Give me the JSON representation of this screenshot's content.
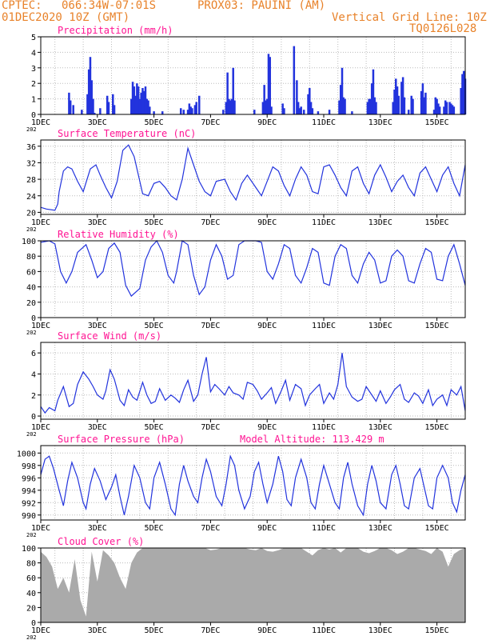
{
  "header": {
    "center": "CPTEC:",
    "location": "066:34W-07:01S",
    "station": "PROX03: PAUINI (AM)",
    "run": "01DEC2020 10Z (GMT)",
    "grid_note": "Vertical Grid Line: 10Z",
    "product": "TQ0126L028"
  },
  "colors": {
    "header": "#e8822a",
    "title": "#ff1493",
    "series": "#2233dd",
    "grid": "#bbbbbb",
    "cloud": "#aaaaaa",
    "frame": "#000000"
  },
  "x_labels": [
    "1DEC",
    "3DEC",
    "5DEC",
    "7DEC",
    "9DEC",
    "11DEC",
    "13DEC",
    "15DEC"
  ],
  "year_fragment": "202",
  "chart_data": [
    {
      "type": "bar",
      "title": "Precipitation (mm/h)",
      "yticks": [
        "0",
        "1",
        "2",
        "3",
        "4",
        "5"
      ],
      "ylim": [
        0,
        5
      ],
      "x_range_days": [
        1.0,
        16.0
      ],
      "bars": [
        [
          2.9,
          0.1
        ],
        [
          2.0,
          1.4
        ],
        [
          2.05,
          0.9
        ],
        [
          2.15,
          0.6
        ],
        [
          2.45,
          0.3
        ],
        [
          2.65,
          1.3
        ],
        [
          2.7,
          2.9
        ],
        [
          2.75,
          3.7
        ],
        [
          2.8,
          2.2
        ],
        [
          2.85,
          1.0
        ],
        [
          3.1,
          0.4
        ],
        [
          3.35,
          1.2
        ],
        [
          3.4,
          0.8
        ],
        [
          3.55,
          1.3
        ],
        [
          3.6,
          0.6
        ],
        [
          4.2,
          1.0
        ],
        [
          4.25,
          2.1
        ],
        [
          4.3,
          1.8
        ],
        [
          4.35,
          1.2
        ],
        [
          4.4,
          2.0
        ],
        [
          4.45,
          1.8
        ],
        [
          4.5,
          1.0
        ],
        [
          4.55,
          1.4
        ],
        [
          4.6,
          1.7
        ],
        [
          4.65,
          1.5
        ],
        [
          4.7,
          1.8
        ],
        [
          4.75,
          1.0
        ],
        [
          4.8,
          0.9
        ],
        [
          4.85,
          0.5
        ],
        [
          5.0,
          0.2
        ],
        [
          5.3,
          0.2
        ],
        [
          5.95,
          0.4
        ],
        [
          6.05,
          0.3
        ],
        [
          6.2,
          0.3
        ],
        [
          6.25,
          0.7
        ],
        [
          6.3,
          0.5
        ],
        [
          6.35,
          0.4
        ],
        [
          6.45,
          0.6
        ],
        [
          6.5,
          0.8
        ],
        [
          6.6,
          1.2
        ],
        [
          7.45,
          0.3
        ],
        [
          7.55,
          0.8
        ],
        [
          7.6,
          2.7
        ],
        [
          7.65,
          1.0
        ],
        [
          7.7,
          0.9
        ],
        [
          7.75,
          1.0
        ],
        [
          7.8,
          3.0
        ],
        [
          7.85,
          0.9
        ],
        [
          8.55,
          0.3
        ],
        [
          8.85,
          0.8
        ],
        [
          8.9,
          1.9
        ],
        [
          8.95,
          0.9
        ],
        [
          9.0,
          1.0
        ],
        [
          9.05,
          3.9
        ],
        [
          9.1,
          3.7
        ],
        [
          9.15,
          0.5
        ],
        [
          9.55,
          0.7
        ],
        [
          9.6,
          0.4
        ],
        [
          9.95,
          4.4
        ],
        [
          10.05,
          2.2
        ],
        [
          10.1,
          0.8
        ],
        [
          10.15,
          0.4
        ],
        [
          10.2,
          0.5
        ],
        [
          10.3,
          0.3
        ],
        [
          10.45,
          1.3
        ],
        [
          10.5,
          1.7
        ],
        [
          10.55,
          0.8
        ],
        [
          10.6,
          0.4
        ],
        [
          10.8,
          0.2
        ],
        [
          11.2,
          0.3
        ],
        [
          11.55,
          0.9
        ],
        [
          11.6,
          1.9
        ],
        [
          11.65,
          3.0
        ],
        [
          11.7,
          1.1
        ],
        [
          11.75,
          1.0
        ],
        [
          12.0,
          0.2
        ],
        [
          12.55,
          0.8
        ],
        [
          12.6,
          1.0
        ],
        [
          12.65,
          1.0
        ],
        [
          12.7,
          2.0
        ],
        [
          12.75,
          2.9
        ],
        [
          12.8,
          1.1
        ],
        [
          12.85,
          0.8
        ],
        [
          13.45,
          0.8
        ],
        [
          13.5,
          1.6
        ],
        [
          13.55,
          2.3
        ],
        [
          13.6,
          1.8
        ],
        [
          13.65,
          1.2
        ],
        [
          13.75,
          2.1
        ],
        [
          13.8,
          2.4
        ],
        [
          13.85,
          1.1
        ],
        [
          14.0,
          0.3
        ],
        [
          14.1,
          1.2
        ],
        [
          14.15,
          1.0
        ],
        [
          14.45,
          1.5
        ],
        [
          14.5,
          2.0
        ],
        [
          14.55,
          1.1
        ],
        [
          14.6,
          1.4
        ],
        [
          14.9,
          0.3
        ],
        [
          14.95,
          1.1
        ],
        [
          15.0,
          1.0
        ],
        [
          15.05,
          0.7
        ],
        [
          15.1,
          0.5
        ],
        [
          15.25,
          0.5
        ],
        [
          15.3,
          0.9
        ],
        [
          15.35,
          0.8
        ],
        [
          15.45,
          0.8
        ],
        [
          15.5,
          0.7
        ],
        [
          15.55,
          0.6
        ],
        [
          15.6,
          0.5
        ],
        [
          15.85,
          1.7
        ],
        [
          15.9,
          2.6
        ],
        [
          15.95,
          2.8
        ],
        [
          16.0,
          2.3
        ]
      ]
    },
    {
      "type": "line",
      "title": "Surface Temperature (nC)",
      "yticks": [
        "20",
        "24",
        "28",
        "32",
        "36"
      ],
      "ylim": [
        19.5,
        37.5
      ],
      "x": [
        1.0,
        1.2,
        1.5,
        1.6,
        1.65,
        1.8,
        1.95,
        2.1,
        2.3,
        2.5,
        2.75,
        2.95,
        3.1,
        3.3,
        3.5,
        3.7,
        3.9,
        4.1,
        4.3,
        4.5,
        4.6,
        4.8,
        5.0,
        5.2,
        5.4,
        5.6,
        5.8,
        6.0,
        6.2,
        6.4,
        6.6,
        6.8,
        7.0,
        7.2,
        7.5,
        7.7,
        7.9,
        8.1,
        8.3,
        8.5,
        8.8,
        9.0,
        9.2,
        9.4,
        9.6,
        9.8,
        10.0,
        10.2,
        10.4,
        10.6,
        10.8,
        11.0,
        11.2,
        11.4,
        11.6,
        11.8,
        12.0,
        12.2,
        12.4,
        12.6,
        12.8,
        13.0,
        13.2,
        13.4,
        13.6,
        13.8,
        14.0,
        14.2,
        14.4,
        14.6,
        14.8,
        15.0,
        15.2,
        15.4,
        15.6,
        15.8,
        16.0
      ],
      "y": [
        21.2,
        20.8,
        20.5,
        22.0,
        25.0,
        30.0,
        31.0,
        30.5,
        27.5,
        25.0,
        30.5,
        31.5,
        29.0,
        26.0,
        23.5,
        27.5,
        35.0,
        36.3,
        33.5,
        27.5,
        24.5,
        24.0,
        27.0,
        27.5,
        26.0,
        24.0,
        23.0,
        28.0,
        35.5,
        31.5,
        27.5,
        25.0,
        24.0,
        27.5,
        28.0,
        25.0,
        23.0,
        27.0,
        29.0,
        27.0,
        24.0,
        27.5,
        31.0,
        30.0,
        26.5,
        24.0,
        28.0,
        31.0,
        29.0,
        25.0,
        24.5,
        31.0,
        31.5,
        29.0,
        26.0,
        24.0,
        30.0,
        31.0,
        27.0,
        24.5,
        29.0,
        31.5,
        28.5,
        25.0,
        27.5,
        29.0,
        26.0,
        24.0,
        29.5,
        31.0,
        28.0,
        25.0,
        29.0,
        31.0,
        27.0,
        24.0,
        31.5
      ]
    },
    {
      "type": "line",
      "title": "Relative Humidity (%)",
      "yticks": [
        "0",
        "20",
        "40",
        "60",
        "80",
        "100"
      ],
      "ylim": [
        0,
        100
      ],
      "x": [
        1.0,
        1.3,
        1.5,
        1.7,
        1.9,
        2.1,
        2.3,
        2.6,
        2.8,
        3.0,
        3.2,
        3.4,
        3.6,
        3.8,
        4.0,
        4.2,
        4.5,
        4.7,
        4.9,
        5.1,
        5.3,
        5.5,
        5.7,
        5.8,
        6.0,
        6.2,
        6.4,
        6.6,
        6.8,
        7.0,
        7.2,
        7.4,
        7.6,
        7.8,
        8.0,
        8.2,
        8.4,
        8.6,
        8.8,
        9.0,
        9.2,
        9.4,
        9.6,
        9.8,
        10.0,
        10.2,
        10.4,
        10.6,
        10.8,
        11.0,
        11.2,
        11.4,
        11.6,
        11.8,
        12.0,
        12.2,
        12.4,
        12.6,
        12.8,
        13.0,
        13.2,
        13.4,
        13.6,
        13.8,
        14.0,
        14.2,
        14.4,
        14.6,
        14.8,
        15.0,
        15.2,
        15.4,
        15.6,
        15.8,
        16.0
      ],
      "y": [
        98,
        100,
        96,
        60,
        45,
        60,
        85,
        95,
        75,
        52,
        60,
        90,
        97,
        85,
        42,
        28,
        38,
        75,
        92,
        100,
        85,
        55,
        45,
        60,
        100,
        95,
        55,
        30,
        40,
        75,
        95,
        80,
        50,
        55,
        95,
        100,
        100,
        100,
        98,
        60,
        50,
        70,
        95,
        90,
        55,
        45,
        65,
        90,
        85,
        45,
        42,
        80,
        95,
        90,
        55,
        45,
        70,
        85,
        75,
        45,
        48,
        80,
        88,
        80,
        48,
        45,
        70,
        90,
        85,
        50,
        48,
        80,
        95,
        70,
        42
      ]
    },
    {
      "type": "line",
      "title": "Surface Wind (m/s)",
      "yticks": [
        "0",
        "2",
        "4",
        "6"
      ],
      "ylim": [
        -0.3,
        7.0
      ],
      "x": [
        1.0,
        1.15,
        1.3,
        1.5,
        1.6,
        1.8,
        2.0,
        2.15,
        2.3,
        2.5,
        2.7,
        2.85,
        3.0,
        3.2,
        3.3,
        3.45,
        3.6,
        3.8,
        3.95,
        4.1,
        4.25,
        4.4,
        4.6,
        4.75,
        4.9,
        5.05,
        5.2,
        5.4,
        5.6,
        5.75,
        5.9,
        6.05,
        6.2,
        6.4,
        6.55,
        6.7,
        6.85,
        7.0,
        7.15,
        7.3,
        7.5,
        7.65,
        7.8,
        8.0,
        8.15,
        8.3,
        8.5,
        8.65,
        8.8,
        9.0,
        9.15,
        9.3,
        9.5,
        9.65,
        9.8,
        10.0,
        10.2,
        10.35,
        10.5,
        10.7,
        10.85,
        11.0,
        11.2,
        11.35,
        11.5,
        11.65,
        11.8,
        12.0,
        12.2,
        12.35,
        12.5,
        12.7,
        12.85,
        13.0,
        13.2,
        13.35,
        13.5,
        13.7,
        13.85,
        14.0,
        14.2,
        14.35,
        14.5,
        14.7,
        14.85,
        15.0,
        15.2,
        15.35,
        15.5,
        15.7,
        15.85,
        16.0
      ],
      "y": [
        0.9,
        0.3,
        0.8,
        0.5,
        1.5,
        2.8,
        0.9,
        1.2,
        3.0,
        4.2,
        3.5,
        2.8,
        2.0,
        1.6,
        2.4,
        4.4,
        3.5,
        1.5,
        1.0,
        2.5,
        1.8,
        1.5,
        3.2,
        2.0,
        1.2,
        1.4,
        2.6,
        1.5,
        2.0,
        1.7,
        1.3,
        2.5,
        3.4,
        1.4,
        2.0,
        4.0,
        5.6,
        2.3,
        3.0,
        2.6,
        2.0,
        2.8,
        2.2,
        2.0,
        1.6,
        3.2,
        3.0,
        2.4,
        1.6,
        2.2,
        2.7,
        1.2,
        2.4,
        3.4,
        1.5,
        3.0,
        2.6,
        1.0,
        2.0,
        2.6,
        3.0,
        1.2,
        2.2,
        1.6,
        3.0,
        6.0,
        2.8,
        1.8,
        1.4,
        1.6,
        2.8,
        2.0,
        1.4,
        2.4,
        1.2,
        1.8,
        2.5,
        3.0,
        1.6,
        1.3,
        2.2,
        1.9,
        1.2,
        2.5,
        1.0,
        1.6,
        2.0,
        1.0,
        2.5,
        2.0,
        2.8,
        0.5
      ]
    },
    {
      "type": "line",
      "title": "Surface Pressure (hPa)",
      "annotation": "Model Altitude: 113.429 m",
      "yticks": [
        "990",
        "992",
        "994",
        "996",
        "998",
        "1000"
      ],
      "ylim": [
        989.2,
        1001.2
      ],
      "x": [
        1.0,
        1.15,
        1.3,
        1.45,
        1.65,
        1.8,
        1.95,
        2.1,
        2.3,
        2.5,
        2.6,
        2.75,
        2.9,
        3.1,
        3.3,
        3.5,
        3.65,
        3.8,
        3.95,
        4.1,
        4.3,
        4.5,
        4.7,
        4.85,
        5.0,
        5.2,
        5.4,
        5.6,
        5.75,
        5.9,
        6.05,
        6.2,
        6.4,
        6.55,
        6.7,
        6.85,
        7.0,
        7.2,
        7.4,
        7.55,
        7.7,
        7.85,
        8.0,
        8.2,
        8.4,
        8.55,
        8.7,
        8.85,
        9.0,
        9.2,
        9.4,
        9.55,
        9.7,
        9.85,
        10.0,
        10.2,
        10.4,
        10.55,
        10.7,
        10.85,
        11.0,
        11.2,
        11.4,
        11.55,
        11.7,
        11.85,
        12.0,
        12.2,
        12.4,
        12.55,
        12.7,
        12.85,
        13.0,
        13.2,
        13.4,
        13.55,
        13.7,
        13.85,
        14.0,
        14.2,
        14.4,
        14.55,
        14.7,
        14.85,
        15.0,
        15.2,
        15.4,
        15.55,
        15.7,
        15.85,
        16.0
      ],
      "y": [
        996.5,
        999.0,
        999.5,
        997.5,
        994.0,
        991.5,
        995.5,
        998.5,
        996.0,
        992.0,
        991.0,
        995.0,
        997.5,
        995.5,
        992.5,
        994.5,
        996.5,
        993.0,
        990.0,
        993.0,
        998.0,
        996.0,
        992.0,
        991.0,
        996.0,
        998.5,
        995.0,
        991.0,
        990.0,
        995.0,
        998.0,
        995.5,
        993.0,
        992.0,
        996.0,
        999.0,
        997.0,
        993.0,
        991.5,
        995.0,
        999.5,
        998.0,
        994.0,
        991.0,
        993.0,
        997.0,
        998.5,
        995.0,
        992.0,
        995.0,
        999.5,
        997.0,
        992.5,
        991.5,
        996.0,
        999.0,
        996.0,
        992.0,
        991.0,
        995.0,
        998.0,
        995.0,
        992.0,
        991.0,
        996.0,
        998.5,
        995.0,
        991.5,
        990.0,
        995.0,
        998.0,
        995.5,
        992.0,
        991.0,
        996.5,
        998.0,
        995.0,
        991.5,
        991.0,
        996.0,
        997.5,
        994.5,
        991.5,
        991.0,
        996.0,
        998.0,
        996.0,
        992.0,
        990.5,
        994.0,
        996.5
      ]
    },
    {
      "type": "area",
      "title": "Cloud Cover (%)",
      "yticks": [
        "0",
        "20",
        "40",
        "60",
        "80",
        "100"
      ],
      "ylim": [
        0,
        100
      ],
      "x": [
        1.0,
        1.2,
        1.4,
        1.6,
        1.8,
        2.0,
        2.2,
        2.4,
        2.6,
        2.8,
        3.0,
        3.2,
        3.4,
        3.6,
        3.8,
        4.0,
        4.2,
        4.4,
        4.6,
        4.8,
        5.0,
        5.2,
        5.4,
        5.6,
        5.8,
        6.0,
        6.2,
        6.4,
        6.6,
        6.8,
        7.0,
        7.2,
        7.4,
        7.6,
        7.8,
        8.0,
        8.2,
        8.4,
        8.6,
        8.8,
        9.0,
        9.2,
        9.4,
        9.6,
        9.8,
        10.0,
        10.2,
        10.4,
        10.6,
        10.8,
        11.0,
        11.2,
        11.4,
        11.6,
        11.8,
        12.0,
        12.2,
        12.4,
        12.6,
        12.8,
        13.0,
        13.2,
        13.4,
        13.6,
        13.8,
        14.0,
        14.2,
        14.4,
        14.6,
        14.8,
        15.0,
        15.2,
        15.4,
        15.6,
        15.8,
        16.0
      ],
      "y": [
        95,
        88,
        75,
        45,
        60,
        40,
        85,
        30,
        8,
        95,
        55,
        97,
        90,
        80,
        60,
        45,
        80,
        94,
        100,
        100,
        100,
        100,
        100,
        100,
        100,
        100,
        100,
        100,
        100,
        100,
        97,
        98,
        100,
        100,
        100,
        100,
        100,
        98,
        97,
        100,
        96,
        95,
        97,
        100,
        100,
        100,
        100,
        95,
        90,
        97,
        100,
        98,
        100,
        94,
        100,
        100,
        100,
        95,
        93,
        96,
        100,
        100,
        97,
        92,
        95,
        100,
        100,
        98,
        96,
        92,
        100,
        95,
        75,
        92,
        97,
        100
      ]
    }
  ]
}
